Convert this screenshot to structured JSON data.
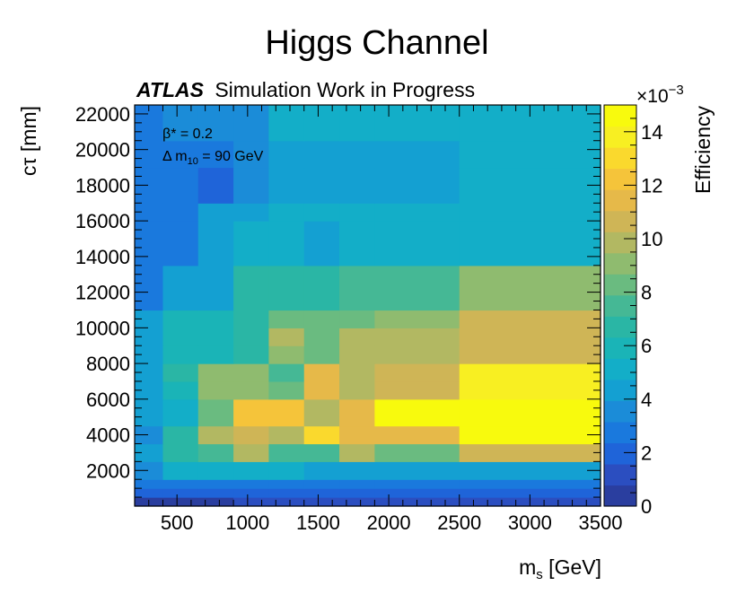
{
  "chart_data": {
    "type": "heatmap",
    "title": "Higgs Channel",
    "label_bold": "ATLAS",
    "label_rest": "Simulation Work in Progress",
    "annotations": [
      {
        "symbol": "β* = 0.2"
      },
      {
        "symbol": "Δ m",
        "sub": "10",
        "rest": " = 90 GeV"
      }
    ],
    "xlabel": {
      "main": "m",
      "sub": "s",
      "rest": " [GeV]"
    },
    "ylabel": "cτ [mm]",
    "zlabel": "Efficiency",
    "zexponent": {
      "base": "×10",
      "sup": "−3"
    },
    "xlim": [
      200,
      3500
    ],
    "ylim": [
      0,
      22500
    ],
    "zlim": [
      0,
      15
    ],
    "xticks": [
      500,
      1000,
      1500,
      2000,
      2500,
      3000,
      3500
    ],
    "yticks": [
      2000,
      4000,
      6000,
      8000,
      10000,
      12000,
      14000,
      16000,
      18000,
      20000,
      22000
    ],
    "zticks": [
      0,
      2,
      4,
      6,
      8,
      10,
      12,
      14
    ],
    "x_edges": [
      200,
      400,
      650,
      900,
      1150,
      1400,
      1650,
      1900,
      2500,
      3500
    ],
    "y_rows": [
      {
        "range": [
          0,
          500
        ],
        "values": [
          0.5,
          0.5,
          0.5,
          1.5,
          1.5,
          1.0,
          1.0,
          1.0,
          1.0
        ]
      },
      {
        "range": [
          500,
          1000
        ],
        "values": [
          2.0,
          2.0,
          2.0,
          2.0,
          2.0,
          2.0,
          2.0,
          2.0,
          2.0
        ]
      },
      {
        "range": [
          1000,
          1500
        ],
        "values": [
          3.0,
          3.0,
          3.0,
          3.0,
          3.0,
          3.0,
          3.0,
          3.0,
          3.0
        ]
      },
      {
        "range": [
          1500,
          2500
        ],
        "values": [
          3.5,
          5.0,
          5.0,
          5.0,
          5.0,
          4.5,
          4.5,
          4.5,
          4.5
        ]
      },
      {
        "range": [
          2500,
          3500
        ],
        "values": [
          4.0,
          6.5,
          7.5,
          9.5,
          7.5,
          7.5,
          9.5,
          8.5,
          11.0
        ]
      },
      {
        "range": [
          3500,
          4500
        ],
        "values": [
          3.5,
          6.5,
          9.5,
          11.0,
          10.0,
          13.0,
          11.5,
          11.5,
          15.0
        ]
      },
      {
        "range": [
          4500,
          6000
        ],
        "values": [
          4.0,
          5.5,
          8.5,
          12.5,
          12.5,
          9.5,
          11.5,
          15.0,
          15.0
        ]
      },
      {
        "range": [
          6000,
          7000
        ],
        "values": [
          4.0,
          6.0,
          9.0,
          9.0,
          8.5,
          11.5,
          10.0,
          10.5,
          13.5
        ]
      },
      {
        "range": [
          7000,
          8000
        ],
        "values": [
          4.0,
          6.5,
          9.0,
          9.0,
          7.5,
          11.5,
          10.0,
          10.5,
          13.5
        ]
      },
      {
        "range": [
          8000,
          9000
        ],
        "values": [
          4.0,
          6.0,
          6.0,
          7.0,
          9.0,
          8.5,
          9.5,
          9.5,
          11.0
        ]
      },
      {
        "range": [
          9000,
          10000
        ],
        "values": [
          4.0,
          6.0,
          6.0,
          6.5,
          9.5,
          8.5,
          9.5,
          9.5,
          11.0
        ]
      },
      {
        "range": [
          10000,
          11000
        ],
        "values": [
          4.0,
          6.0,
          6.0,
          6.5,
          8.0,
          8.0,
          8.5,
          9.0,
          11.0
        ]
      },
      {
        "range": [
          11000,
          13500
        ],
        "values": [
          3.0,
          4.0,
          4.0,
          6.5,
          6.5,
          6.5,
          7.5,
          7.5,
          9.0
        ]
      },
      {
        "range": [
          13500,
          16000
        ],
        "values": [
          3.0,
          3.0,
          4.0,
          5.0,
          5.0,
          4.5,
          5.5,
          5.5,
          5.5
        ]
      },
      {
        "range": [
          16000,
          17000
        ],
        "values": [
          3.0,
          3.0,
          4.0,
          4.5,
          5.0,
          5.5,
          5.5,
          5.5,
          5.5
        ]
      },
      {
        "range": [
          17000,
          19000
        ],
        "values": [
          2.5,
          2.5,
          2.0,
          3.5,
          4.5,
          4.0,
          4.0,
          4.0,
          5.5
        ]
      },
      {
        "range": [
          19000,
          20500
        ],
        "values": [
          2.5,
          3.0,
          2.5,
          3.5,
          4.5,
          4.0,
          4.0,
          4.0,
          5.5
        ]
      },
      {
        "range": [
          20500,
          22500
        ],
        "values": [
          3.0,
          3.5,
          3.5,
          3.5,
          5.0,
          5.0,
          5.0,
          5.0,
          5.5
        ]
      }
    ],
    "colormap": [
      "#2a3e9f",
      "#2b4ec0",
      "#1f64d9",
      "#1a79dd",
      "#1b8cd8",
      "#14a0d2",
      "#13aec8",
      "#1ab4b7",
      "#2ab6a5",
      "#45b895",
      "#6abb80",
      "#8fbb6f",
      "#b2b862",
      "#cfb556",
      "#e6b949",
      "#f5c43a",
      "#fad92d",
      "#f8ef22",
      "#f8fa0d"
    ]
  }
}
